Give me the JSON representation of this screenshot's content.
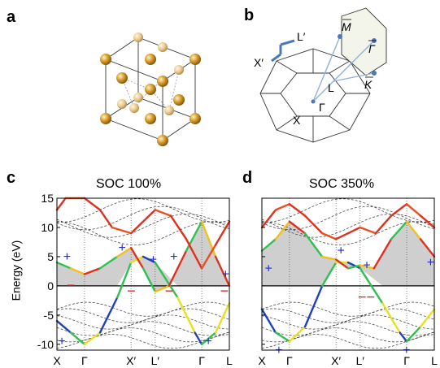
{
  "panels": {
    "a": "a",
    "b": "b",
    "c": "c",
    "d": "d"
  },
  "brillouin": {
    "labels": [
      "X′",
      "L′",
      "M",
      "Γ",
      "K",
      "L",
      "Γ",
      "X"
    ]
  },
  "chart_data": [
    {
      "type": "line",
      "title": "SOC 100%",
      "ylabel": "Energy (eV)",
      "ylim": [
        -11,
        15
      ],
      "yticks": [
        15,
        10,
        5,
        0,
        -5,
        -10
      ],
      "xticks": [
        "X",
        "Γ",
        "X′",
        "L′",
        "Γ",
        "L"
      ],
      "x_positions": [
        0,
        0.16,
        0.43,
        0.57,
        0.84,
        1.0
      ],
      "plus_markers": [
        [
          0.06,
          5
        ],
        [
          0.03,
          -9.5
        ],
        [
          0.38,
          6.5
        ],
        [
          0.56,
          4.5
        ],
        [
          0.68,
          5
        ],
        [
          0.88,
          -9.5
        ],
        [
          0.98,
          2
        ]
      ],
      "minus_markers": [
        [
          0.08,
          0
        ],
        [
          0.43,
          -1
        ],
        [
          0.65,
          -1
        ],
        [
          0.97,
          -1
        ]
      ],
      "series": [
        {
          "values": [
            [
              0,
              -6
            ],
            [
              0.08,
              -8
            ],
            [
              0.16,
              -10
            ],
            [
              0.25,
              -8
            ],
            [
              0.35,
              -2
            ],
            [
              0.43,
              4
            ],
            [
              0.5,
              5
            ],
            [
              0.57,
              4
            ],
            [
              0.7,
              -2
            ],
            [
              0.8,
              -8
            ],
            [
              0.84,
              -10
            ],
            [
              0.92,
              -8
            ],
            [
              1.0,
              -3
            ]
          ]
        },
        {
          "values": [
            [
              0,
              4
            ],
            [
              0.08,
              3
            ],
            [
              0.16,
              2
            ],
            [
              0.25,
              3
            ],
            [
              0.35,
              5
            ],
            [
              0.43,
              6.5
            ],
            [
              0.5,
              3
            ],
            [
              0.57,
              -1
            ],
            [
              0.65,
              0
            ],
            [
              0.75,
              6
            ],
            [
              0.84,
              11
            ],
            [
              0.92,
              5
            ],
            [
              1.0,
              0
            ]
          ]
        },
        {
          "values": [
            [
              0,
              13
            ],
            [
              0.05,
              15
            ],
            [
              0.16,
              15
            ],
            [
              0.25,
              13
            ],
            [
              0.32,
              10
            ],
            [
              0.43,
              9
            ],
            [
              0.5,
              11
            ],
            [
              0.57,
              13
            ],
            [
              0.66,
              12
            ],
            [
              0.75,
              8
            ],
            [
              0.84,
              3
            ],
            [
              0.92,
              7
            ],
            [
              1.0,
              11
            ]
          ]
        }
      ]
    },
    {
      "type": "line",
      "title": "SOC 350%",
      "ylim": [
        -11,
        15
      ],
      "yticks": [
        15,
        10,
        5,
        0,
        -5,
        -10
      ],
      "xticks": [
        "X",
        "Γ",
        "X′",
        "L′",
        "Γ",
        "L"
      ],
      "x_positions": [
        0,
        0.16,
        0.43,
        0.57,
        0.84,
        1.0
      ],
      "plus_markers": [
        [
          0.04,
          3
        ],
        [
          0.1,
          -11
        ],
        [
          0.46,
          6
        ],
        [
          0.61,
          3.5
        ],
        [
          0.84,
          -11
        ],
        [
          0.98,
          4
        ]
      ],
      "minus_markers": [
        [
          0.58,
          -2
        ],
        [
          0.63,
          -2
        ]
      ],
      "series": [
        {
          "values": [
            [
              0,
              -4
            ],
            [
              0.08,
              -8
            ],
            [
              0.16,
              -9.5
            ],
            [
              0.25,
              -7
            ],
            [
              0.35,
              0
            ],
            [
              0.43,
              4
            ],
            [
              0.5,
              4
            ],
            [
              0.57,
              3
            ],
            [
              0.7,
              -3
            ],
            [
              0.8,
              -8
            ],
            [
              0.84,
              -9.5
            ],
            [
              0.92,
              -7
            ],
            [
              1.0,
              -4
            ]
          ]
        },
        {
          "values": [
            [
              0,
              6
            ],
            [
              0.08,
              8
            ],
            [
              0.16,
              11
            ],
            [
              0.25,
              9
            ],
            [
              0.35,
              5
            ],
            [
              0.43,
              4.5
            ],
            [
              0.5,
              3
            ],
            [
              0.57,
              3.5
            ],
            [
              0.65,
              3
            ],
            [
              0.75,
              8
            ],
            [
              0.84,
              11
            ],
            [
              0.92,
              8
            ],
            [
              1.0,
              5
            ]
          ]
        },
        {
          "values": [
            [
              0,
              10
            ],
            [
              0.08,
              13
            ],
            [
              0.16,
              14
            ],
            [
              0.25,
              12
            ],
            [
              0.35,
              9
            ],
            [
              0.43,
              8
            ],
            [
              0.5,
              9
            ],
            [
              0.57,
              10
            ],
            [
              0.66,
              9
            ],
            [
              0.75,
              12
            ],
            [
              0.84,
              14
            ],
            [
              0.92,
              12
            ],
            [
              1.0,
              10
            ]
          ]
        }
      ]
    }
  ]
}
